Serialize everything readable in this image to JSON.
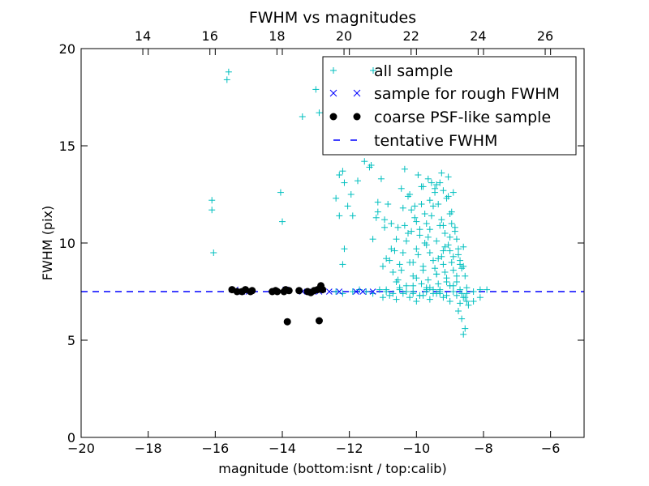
{
  "chart_data": {
    "type": "scatter",
    "title": "FWHM vs magnitudes",
    "xlabel": "magnitude (bottom:isnt / top:calib)",
    "ylabel": "FWHM (pix)",
    "xlim": [
      -20,
      -5
    ],
    "ylim": [
      0,
      20
    ],
    "top_xlim": [
      12.16,
      27.16
    ],
    "x_ticks": [
      -20,
      -18,
      -16,
      -14,
      -12,
      -10,
      -8,
      -6
    ],
    "x_tick_labels": [
      "−20",
      "−18",
      "−16",
      "−14",
      "−12",
      "−10",
      "−8",
      "−6"
    ],
    "top_ticks": [
      14,
      16,
      18,
      20,
      22,
      24,
      26
    ],
    "top_tick_labels": [
      "14",
      "16",
      "18",
      "20",
      "22",
      "24",
      "26"
    ],
    "y_ticks": [
      0,
      5,
      10,
      15,
      20
    ],
    "y_tick_labels": [
      "0",
      "5",
      "10",
      "15",
      "20"
    ],
    "grid": false,
    "legend_position": "top-right",
    "colors": {
      "all_sample": "#00BFBF",
      "rough_sample": "#0000FF",
      "coarse_sample": "#000000",
      "tentative_line": "#0000FF"
    },
    "series": [
      {
        "name": "all sample",
        "marker": "plus",
        "x": [
          -15.6,
          -15.65,
          -16.1,
          -16.1,
          -16.05,
          -14.05,
          -14.0,
          -13.0,
          -13.4,
          -12.9,
          -12.4,
          -12.3,
          -12.2,
          -12.3,
          -12.15,
          -12.2,
          -12.15,
          -12.05,
          -11.95,
          -11.9,
          -11.75,
          -11.55,
          -11.35,
          -11.15,
          -11.2,
          -11.3,
          -11.05,
          -10.95,
          -10.85,
          -10.75,
          -10.65,
          -10.55,
          -10.45,
          -10.35,
          -10.25,
          -10.15,
          -10.05,
          -9.95,
          -9.85,
          -9.75,
          -9.65,
          -9.55,
          -9.45,
          -9.35,
          -9.25,
          -9.15,
          -9.05,
          -8.95,
          -8.85,
          -8.75,
          -8.65,
          -11.4,
          -11.0,
          -10.9,
          -10.7,
          -10.6,
          -10.5,
          -10.4,
          -10.3,
          -10.2,
          -10.1,
          -10.0,
          -9.9,
          -9.8,
          -9.7,
          -9.6,
          -9.5,
          -9.4,
          -9.3,
          -9.2,
          -9.1,
          -9.0,
          -8.9,
          -8.8,
          -8.7,
          -8.6,
          -8.55,
          -8.95,
          -9.15,
          -9.35,
          -9.55,
          -9.75,
          -9.95,
          -10.15,
          -10.35,
          -10.55,
          -10.75,
          -10.95,
          -11.15,
          -9.2,
          -9.4,
          -9.6,
          -9.8,
          -10.0,
          -10.2,
          -10.4,
          -10.6,
          -10.8,
          -9.05,
          -9.25,
          -9.45,
          -9.65,
          -9.85,
          -10.05,
          -10.25,
          -10.45,
          -8.9,
          -9.1,
          -9.3,
          -9.5,
          -9.7,
          -9.9,
          -10.1,
          -10.3,
          -9.0,
          -9.2,
          -9.4,
          -9.6,
          -9.8,
          -10.0,
          -8.85,
          -9.05,
          -9.25,
          -9.45,
          -9.65,
          -9.85,
          -8.8,
          -9.0,
          -9.2,
          -9.4,
          -9.6,
          -8.75,
          -8.95,
          -9.15,
          -9.35,
          -8.7,
          -8.9,
          -9.1,
          -8.6,
          -8.8,
          -9.0,
          -9.3,
          -9.5,
          -9.7,
          -9.9,
          -10.1,
          -8.65,
          -8.55,
          -8.5,
          -8.7,
          -8.75,
          -8.65,
          -8.6,
          -8.55,
          -8.45,
          -8.3,
          -8.1,
          -7.9,
          -12.4,
          -12.2,
          -11.9,
          -11.7,
          -11.5,
          -11.3,
          -11.1,
          -10.9,
          -10.7,
          -10.5,
          -10.3,
          -10.1,
          -9.9,
          -9.7,
          -9.5,
          -9.3,
          -9.1,
          -8.9,
          -8.7,
          -8.5,
          -8.3,
          -8.1,
          -11.0,
          -10.8,
          -10.6,
          -10.4,
          -10.2,
          -10.0,
          -9.8,
          -9.6,
          -9.4,
          -9.2,
          -9.0,
          -8.8,
          -8.6,
          -10.9,
          -10.5,
          -10.1,
          -9.7,
          -9.3,
          -8.9,
          -8.5
        ],
        "y": [
          18.8,
          18.4,
          12.2,
          11.7,
          9.5,
          12.6,
          11.1,
          17.9,
          16.5,
          16.7,
          12.3,
          13.5,
          13.7,
          11.4,
          13.1,
          8.9,
          9.7,
          11.9,
          12.5,
          11.4,
          13.2,
          14.2,
          14.0,
          12.1,
          11.3,
          10.2,
          13.3,
          11.2,
          12.0,
          11.0,
          9.6,
          10.8,
          12.8,
          13.8,
          12.4,
          10.6,
          11.9,
          13.5,
          12.9,
          11.5,
          10.3,
          13.1,
          12.6,
          12.0,
          11.2,
          9.8,
          12.4,
          11.6,
          10.6,
          9.4,
          8.7,
          13.9,
          8.8,
          9.2,
          8.5,
          8.0,
          8.9,
          9.5,
          10.1,
          9.0,
          8.3,
          9.7,
          10.4,
          8.6,
          9.9,
          10.7,
          9.1,
          8.4,
          10.9,
          9.6,
          8.2,
          10.3,
          9.3,
          8.0,
          8.9,
          9.8,
          8.3,
          11.0,
          10.5,
          9.2,
          11.4,
          10.0,
          9.4,
          11.7,
          10.9,
          8.1,
          9.7,
          10.8,
          11.6,
          12.7,
          13.0,
          12.2,
          12.9,
          11.1,
          12.5,
          11.8,
          10.2,
          9.1,
          13.4,
          13.6,
          12.8,
          13.3,
          12.0,
          11.3,
          10.5,
          8.6,
          12.6,
          12.3,
          13.1,
          11.9,
          11.0,
          10.7,
          9.0,
          7.8,
          11.5,
          10.9,
          10.1,
          9.5,
          8.8,
          8.2,
          10.8,
          9.9,
          9.3,
          8.7,
          8.1,
          7.9,
          10.2,
          9.6,
          8.9,
          8.4,
          7.7,
          9.7,
          9.0,
          8.5,
          7.9,
          9.1,
          8.6,
          8.0,
          8.8,
          8.3,
          7.8,
          7.5,
          7.4,
          7.6,
          7.3,
          7.5,
          7.4,
          7.2,
          7.0,
          6.9,
          6.5,
          6.1,
          5.3,
          5.6,
          6.8,
          7.0,
          7.2,
          7.6,
          7.5,
          7.4,
          7.5,
          7.6,
          7.5,
          7.4,
          7.6,
          7.5,
          7.4,
          7.6,
          7.5,
          7.4,
          7.3,
          7.5,
          7.6,
          7.4,
          7.3,
          7.5,
          7.6,
          7.4,
          7.5,
          7.6,
          7.2,
          7.3,
          7.1,
          7.4,
          7.2,
          7.0,
          7.3,
          7.1,
          7.4,
          7.2,
          7.0,
          7.3,
          7.2,
          7.6,
          7.7,
          7.8,
          7.7,
          7.6,
          7.8,
          7.7
        ]
      },
      {
        "name": "sample for rough FWHM",
        "marker": "x",
        "x": [
          -15.4,
          -15.2,
          -15.0,
          -14.2,
          -13.9,
          -13.4,
          -13.1,
          -12.9,
          -12.6,
          -12.3,
          -11.8,
          -11.6,
          -11.3
        ],
        "y": [
          7.6,
          7.5,
          7.5,
          7.5,
          7.6,
          7.5,
          7.5,
          7.5,
          7.5,
          7.5,
          7.5,
          7.5,
          7.5
        ]
      },
      {
        "name": "coarse PSF-like sample",
        "marker": "dot",
        "x": [
          -15.5,
          -15.35,
          -15.2,
          -15.1,
          -14.95,
          -14.9,
          -14.3,
          -14.2,
          -14.15,
          -13.95,
          -13.9,
          -13.8,
          -13.5,
          -13.25,
          -13.15,
          -13.05,
          -12.95,
          -12.85,
          -12.8,
          -13.85,
          -12.9
        ],
        "y": [
          7.6,
          7.5,
          7.5,
          7.6,
          7.5,
          7.55,
          7.5,
          7.55,
          7.5,
          7.5,
          7.6,
          7.55,
          7.55,
          7.5,
          7.45,
          7.55,
          7.6,
          7.8,
          7.6,
          5.95,
          6.0
        ]
      },
      {
        "name": "tentative FWHM",
        "marker": "dashed-line",
        "y": 7.5
      }
    ]
  }
}
